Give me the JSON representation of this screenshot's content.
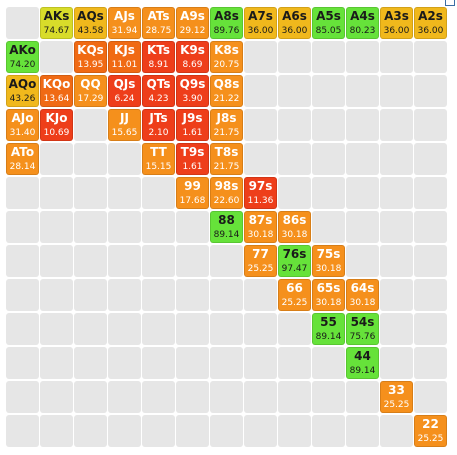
{
  "colors": {
    "green": "#66e23a",
    "yellow": "#d8dc2a",
    "gold": "#f0b81c",
    "orange": "#f5901c",
    "darkorange": "#f06a14",
    "red": "#ee3e1a",
    "empty": "#e6e6e6"
  },
  "corner_icon": "window-restore-icon",
  "cells": [
    {
      "hand": "AKs",
      "value": "74.67",
      "color": "yellow",
      "r": 0,
      "c": 1
    },
    {
      "hand": "AQs",
      "value": "43.58",
      "color": "gold",
      "r": 0,
      "c": 2
    },
    {
      "hand": "AJs",
      "value": "31.94",
      "color": "orange",
      "r": 0,
      "c": 3
    },
    {
      "hand": "ATs",
      "value": "28.75",
      "color": "orange",
      "r": 0,
      "c": 4
    },
    {
      "hand": "A9s",
      "value": "29.12",
      "color": "orange",
      "r": 0,
      "c": 5
    },
    {
      "hand": "A8s",
      "value": "89.76",
      "color": "green",
      "r": 0,
      "c": 6
    },
    {
      "hand": "A7s",
      "value": "36.00",
      "color": "gold",
      "r": 0,
      "c": 7
    },
    {
      "hand": "A6s",
      "value": "36.00",
      "color": "gold",
      "r": 0,
      "c": 8
    },
    {
      "hand": "A5s",
      "value": "85.05",
      "color": "green",
      "r": 0,
      "c": 9
    },
    {
      "hand": "A4s",
      "value": "80.23",
      "color": "green",
      "r": 0,
      "c": 10
    },
    {
      "hand": "A3s",
      "value": "36.00",
      "color": "gold",
      "r": 0,
      "c": 11
    },
    {
      "hand": "A2s",
      "value": "36.00",
      "color": "gold",
      "r": 0,
      "c": 12
    },
    {
      "hand": "AKo",
      "value": "74.20",
      "color": "green",
      "r": 1,
      "c": 0
    },
    {
      "hand": "KQs",
      "value": "13.95",
      "color": "darkorange",
      "r": 1,
      "c": 2
    },
    {
      "hand": "KJs",
      "value": "11.01",
      "color": "darkorange",
      "r": 1,
      "c": 3
    },
    {
      "hand": "KTs",
      "value": "8.91",
      "color": "red",
      "r": 1,
      "c": 4
    },
    {
      "hand": "K9s",
      "value": "8.69",
      "color": "red",
      "r": 1,
      "c": 5
    },
    {
      "hand": "K8s",
      "value": "20.75",
      "color": "orange",
      "r": 1,
      "c": 6
    },
    {
      "hand": "AQo",
      "value": "43.26",
      "color": "gold",
      "r": 2,
      "c": 0
    },
    {
      "hand": "KQo",
      "value": "13.64",
      "color": "darkorange",
      "r": 2,
      "c": 1
    },
    {
      "hand": "QQ",
      "value": "17.29",
      "color": "orange",
      "r": 2,
      "c": 2
    },
    {
      "hand": "QJs",
      "value": "6.24",
      "color": "red",
      "r": 2,
      "c": 3
    },
    {
      "hand": "QTs",
      "value": "4.23",
      "color": "red",
      "r": 2,
      "c": 4
    },
    {
      "hand": "Q9s",
      "value": "3.90",
      "color": "red",
      "r": 2,
      "c": 5
    },
    {
      "hand": "Q8s",
      "value": "21.22",
      "color": "orange",
      "r": 2,
      "c": 6
    },
    {
      "hand": "AJo",
      "value": "31.40",
      "color": "orange",
      "r": 3,
      "c": 0
    },
    {
      "hand": "KJo",
      "value": "10.69",
      "color": "red",
      "r": 3,
      "c": 1
    },
    {
      "hand": "JJ",
      "value": "15.65",
      "color": "orange",
      "r": 3,
      "c": 3
    },
    {
      "hand": "JTs",
      "value": "2.10",
      "color": "red",
      "r": 3,
      "c": 4
    },
    {
      "hand": "J9s",
      "value": "1.61",
      "color": "red",
      "r": 3,
      "c": 5
    },
    {
      "hand": "J8s",
      "value": "21.75",
      "color": "orange",
      "r": 3,
      "c": 6
    },
    {
      "hand": "ATo",
      "value": "28.14",
      "color": "orange",
      "r": 4,
      "c": 0
    },
    {
      "hand": "TT",
      "value": "15.15",
      "color": "orange",
      "r": 4,
      "c": 4
    },
    {
      "hand": "T9s",
      "value": "1.61",
      "color": "red",
      "r": 4,
      "c": 5
    },
    {
      "hand": "T8s",
      "value": "21.75",
      "color": "orange",
      "r": 4,
      "c": 6
    },
    {
      "hand": "99",
      "value": "17.68",
      "color": "orange",
      "r": 5,
      "c": 5
    },
    {
      "hand": "98s",
      "value": "22.60",
      "color": "orange",
      "r": 5,
      "c": 6
    },
    {
      "hand": "97s",
      "value": "11.36",
      "color": "red",
      "r": 5,
      "c": 7
    },
    {
      "hand": "88",
      "value": "89.14",
      "color": "green",
      "r": 6,
      "c": 6
    },
    {
      "hand": "87s",
      "value": "30.18",
      "color": "orange",
      "r": 6,
      "c": 7
    },
    {
      "hand": "86s",
      "value": "30.18",
      "color": "orange",
      "r": 6,
      "c": 8
    },
    {
      "hand": "77",
      "value": "25.25",
      "color": "orange",
      "r": 7,
      "c": 7
    },
    {
      "hand": "76s",
      "value": "97.47",
      "color": "green",
      "r": 7,
      "c": 8
    },
    {
      "hand": "75s",
      "value": "30.18",
      "color": "orange",
      "r": 7,
      "c": 9
    },
    {
      "hand": "66",
      "value": "25.25",
      "color": "orange",
      "r": 8,
      "c": 8
    },
    {
      "hand": "65s",
      "value": "30.18",
      "color": "orange",
      "r": 8,
      "c": 9
    },
    {
      "hand": "64s",
      "value": "30.18",
      "color": "orange",
      "r": 8,
      "c": 10
    },
    {
      "hand": "55",
      "value": "89.14",
      "color": "green",
      "r": 9,
      "c": 9
    },
    {
      "hand": "54s",
      "value": "75.76",
      "color": "green",
      "r": 9,
      "c": 10
    },
    {
      "hand": "44",
      "value": "89.14",
      "color": "green",
      "r": 10,
      "c": 10
    },
    {
      "hand": "33",
      "value": "25.25",
      "color": "orange",
      "r": 11,
      "c": 11
    },
    {
      "hand": "22",
      "value": "25.25",
      "color": "orange",
      "r": 12,
      "c": 12
    }
  ]
}
